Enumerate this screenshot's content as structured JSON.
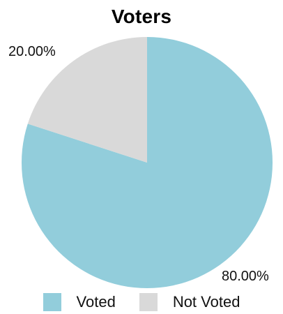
{
  "chart_data": {
    "type": "pie",
    "title": "Voters",
    "categories": [
      "Voted",
      "Not Voted"
    ],
    "values": [
      80.0,
      20.0
    ],
    "labels": [
      "80.00%",
      "20.00%"
    ],
    "colors": [
      "#92cddb",
      "#d9d9d9"
    ],
    "start_angle_deg": 0,
    "direction": "clockwise",
    "legend": {
      "position": "bottom",
      "entries": [
        "Voted",
        "Not Voted"
      ]
    }
  }
}
